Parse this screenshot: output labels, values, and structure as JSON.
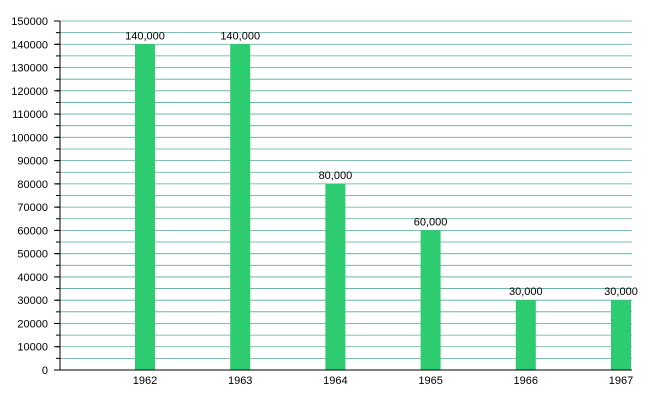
{
  "chart_data": {
    "type": "bar",
    "categories": [
      "1962",
      "1963",
      "1964",
      "1965",
      "1966",
      "1967"
    ],
    "values": [
      140000,
      140000,
      80000,
      60000,
      30000,
      30000
    ],
    "data_labels": [
      "140,000",
      "140,000",
      "80,000",
      "60,000",
      "30,000",
      "30,000"
    ],
    "y_ticks": [
      "0",
      "10000",
      "20000",
      "30000",
      "40000",
      "50000",
      "60000",
      "70000",
      "80000",
      "90000",
      "100000",
      "110000",
      "120000",
      "130000",
      "140000",
      "150000"
    ],
    "title": "",
    "xlabel": "",
    "ylabel": "",
    "ylim": [
      0,
      150000
    ],
    "grid": true,
    "minor_grid_step": 5000,
    "legend": "none",
    "colors": {
      "bar": "#2ecc71",
      "grid": "#5aa99a",
      "axis": "#000000"
    }
  }
}
